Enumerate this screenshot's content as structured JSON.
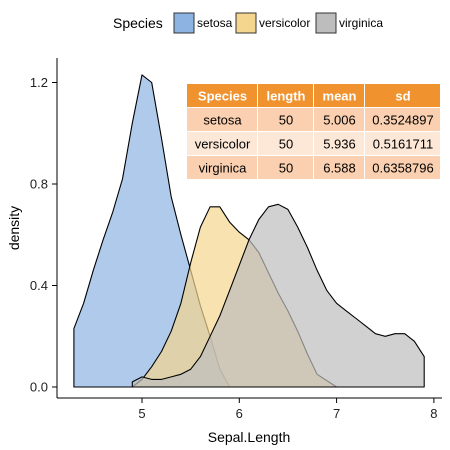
{
  "chart_data": {
    "type": "area",
    "title": "",
    "xlabel": "Sepal.Length",
    "ylabel": "density",
    "xlim": [
      4.3,
      8.1
    ],
    "ylim": [
      0,
      1.3
    ],
    "x_ticks": [
      5,
      6,
      7,
      8
    ],
    "y_ticks": [
      0.0,
      0.4,
      0.8,
      1.2
    ],
    "y_tick_labels": [
      "0.0",
      "0.4",
      "0.8",
      "1.2"
    ],
    "grid": false,
    "legend": {
      "title": "Species",
      "position": "top",
      "entries": [
        "setosa",
        "versicolor",
        "virginica"
      ]
    },
    "series": [
      {
        "name": "setosa",
        "color": "#8db3e2",
        "points": [
          [
            4.3,
            0.23
          ],
          [
            4.4,
            0.33
          ],
          [
            4.5,
            0.46
          ],
          [
            4.6,
            0.58
          ],
          [
            4.7,
            0.69
          ],
          [
            4.8,
            0.82
          ],
          [
            4.9,
            1.04
          ],
          [
            5.0,
            1.23
          ],
          [
            5.1,
            1.2
          ],
          [
            5.2,
            0.98
          ],
          [
            5.3,
            0.75
          ],
          [
            5.4,
            0.6
          ],
          [
            5.5,
            0.46
          ],
          [
            5.6,
            0.32
          ],
          [
            5.7,
            0.2
          ],
          [
            5.8,
            0.07
          ],
          [
            5.9,
            0.0
          ]
        ]
      },
      {
        "name": "versicolor",
        "color": "#f4d68e",
        "points": [
          [
            4.9,
            0.0
          ],
          [
            5.0,
            0.03
          ],
          [
            5.1,
            0.08
          ],
          [
            5.2,
            0.14
          ],
          [
            5.3,
            0.22
          ],
          [
            5.4,
            0.33
          ],
          [
            5.5,
            0.49
          ],
          [
            5.6,
            0.63
          ],
          [
            5.7,
            0.71
          ],
          [
            5.8,
            0.71
          ],
          [
            5.9,
            0.65
          ],
          [
            6.0,
            0.61
          ],
          [
            6.1,
            0.58
          ],
          [
            6.2,
            0.53
          ],
          [
            6.3,
            0.45
          ],
          [
            6.4,
            0.37
          ],
          [
            6.5,
            0.3
          ],
          [
            6.6,
            0.22
          ],
          [
            6.7,
            0.13
          ],
          [
            6.8,
            0.05
          ],
          [
            7.0,
            0.0
          ]
        ]
      },
      {
        "name": "virginica",
        "color": "#bdbdbd",
        "points": [
          [
            4.9,
            0.02
          ],
          [
            5.0,
            0.04
          ],
          [
            5.1,
            0.03
          ],
          [
            5.2,
            0.03
          ],
          [
            5.3,
            0.04
          ],
          [
            5.4,
            0.05
          ],
          [
            5.5,
            0.07
          ],
          [
            5.6,
            0.12
          ],
          [
            5.7,
            0.2
          ],
          [
            5.8,
            0.28
          ],
          [
            5.9,
            0.38
          ],
          [
            6.0,
            0.48
          ],
          [
            6.1,
            0.58
          ],
          [
            6.2,
            0.66
          ],
          [
            6.3,
            0.71
          ],
          [
            6.4,
            0.72
          ],
          [
            6.5,
            0.7
          ],
          [
            6.6,
            0.63
          ],
          [
            6.7,
            0.55
          ],
          [
            6.8,
            0.46
          ],
          [
            6.9,
            0.38
          ],
          [
            7.0,
            0.33
          ],
          [
            7.1,
            0.3
          ],
          [
            7.2,
            0.27
          ],
          [
            7.3,
            0.24
          ],
          [
            7.4,
            0.21
          ],
          [
            7.5,
            0.2
          ],
          [
            7.6,
            0.21
          ],
          [
            7.7,
            0.21
          ],
          [
            7.8,
            0.18
          ],
          [
            7.9,
            0.12
          ]
        ]
      }
    ],
    "table": {
      "header_color": "#f0922e",
      "row_colors": [
        "#fbd0b0",
        "#fde8d8",
        "#fbd0b0"
      ],
      "columns": [
        "Species",
        "length",
        "mean",
        "sd"
      ],
      "rows": [
        [
          "setosa",
          "50",
          "5.006",
          "0.3524897"
        ],
        [
          "versicolor",
          "50",
          "5.936",
          "0.5161711"
        ],
        [
          "virginica",
          "50",
          "6.588",
          "0.6358796"
        ]
      ]
    }
  }
}
